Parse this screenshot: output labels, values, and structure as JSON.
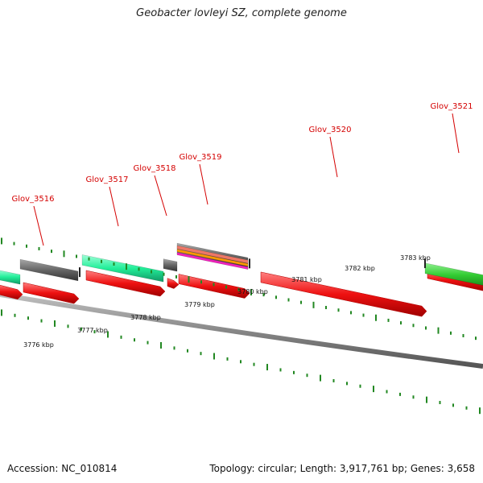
{
  "title": "Geobacter lovleyi SZ, complete genome",
  "footer": {
    "accession": "Accession: NC_010814",
    "summary": "Topology: circular; Length: 3,917,761 bp; Genes: 3,658"
  },
  "colors": {
    "forward_cds": "#ee1111",
    "reverse_cds_cyan": "#22ee99",
    "reverse_cds_gray": "#666666",
    "reverse_cds_green": "#33cc33",
    "backbone": "#888888",
    "gene_label": "#d40000",
    "scale_tick": "#228822"
  },
  "gene_labels": [
    "Glov_3516",
    "Glov_3517",
    "Glov_3518",
    "Glov_3519",
    "Glov_3520",
    "Glov_3521"
  ],
  "scale_labels": [
    "3776 kbp",
    "3777 kbp",
    "3778 kbp",
    "3779 kbp",
    "3780 kbp",
    "3781 kbp",
    "3782 kbp",
    "3783 kbp"
  ]
}
